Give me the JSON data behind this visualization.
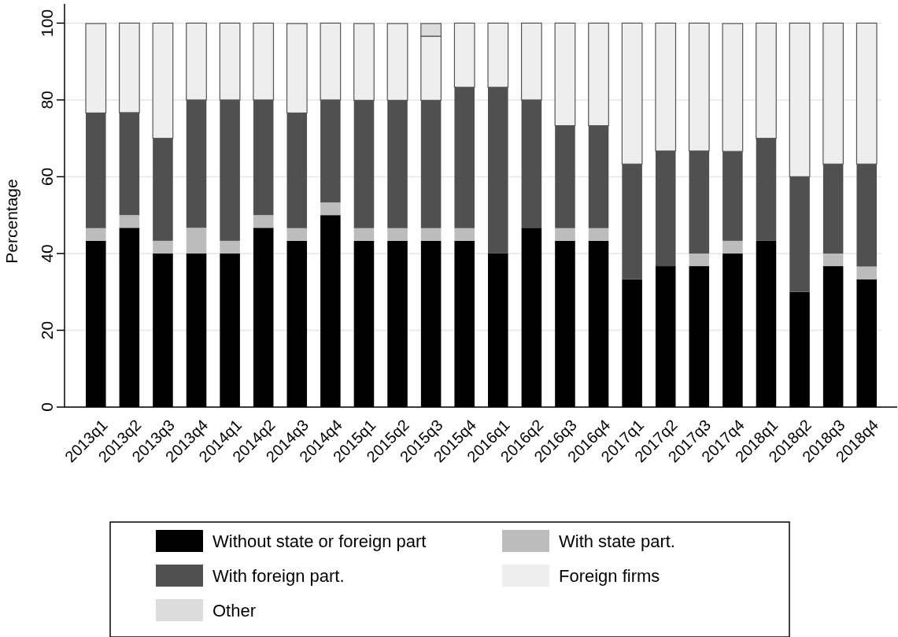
{
  "chart_data": {
    "type": "bar",
    "stacked": true,
    "ylabel": "Percentage",
    "categories": [
      "2013q1",
      "2013q2",
      "2013q3",
      "2013q4",
      "2014q1",
      "2014q2",
      "2014q3",
      "2014q4",
      "2015q1",
      "2015q2",
      "2015q3",
      "2015q4",
      "2016q1",
      "2016q2",
      "2016q3",
      "2016q4",
      "2017q1",
      "2017q2",
      "2017q3",
      "2017q4",
      "2018q1",
      "2018q2",
      "2018q3",
      "2018q4"
    ],
    "series": [
      {
        "name": "Without state or foreign part",
        "color": "#000000",
        "values": [
          43.3,
          46.7,
          40,
          40,
          40,
          46.7,
          43.3,
          50,
          43.3,
          43.3,
          43.3,
          43.3,
          40,
          46.7,
          43.3,
          43.3,
          33.3,
          36.7,
          36.7,
          40,
          43.3,
          30,
          36.7,
          33.3
        ]
      },
      {
        "name": "With state part.",
        "color": "#bcbcbc",
        "values": [
          3.3,
          3.3,
          3.3,
          6.7,
          3.3,
          3.3,
          3.3,
          3.3,
          3.3,
          3.3,
          3.3,
          3.3,
          0,
          0,
          3.3,
          3.3,
          0,
          0,
          3.3,
          3.3,
          0,
          0,
          3.3,
          3.3
        ]
      },
      {
        "name": "With foreign part.",
        "color": "#505050",
        "values": [
          30,
          26.7,
          26.7,
          33.3,
          36.7,
          30,
          30,
          26.7,
          33.3,
          33.3,
          33.3,
          36.7,
          43.3,
          33.3,
          26.7,
          26.7,
          30,
          30,
          26.7,
          23.3,
          26.7,
          30,
          23.3,
          26.7
        ]
      },
      {
        "name": "Foreign firms",
        "color": "#eeeeee",
        "values": [
          23.3,
          23.3,
          30,
          20,
          20,
          20,
          23.3,
          20,
          20,
          20,
          16.7,
          16.7,
          16.7,
          20,
          26.7,
          26.7,
          36.7,
          33.3,
          33.3,
          33.3,
          30,
          40,
          36.7,
          36.7
        ]
      },
      {
        "name": "Other",
        "color": "#dcdcdc",
        "values": [
          0,
          0,
          0,
          0,
          0,
          0,
          0,
          0,
          0,
          0,
          3.3,
          0,
          0,
          0,
          0,
          0,
          0,
          0,
          0,
          0,
          0,
          0,
          0,
          0
        ]
      }
    ],
    "ylim": [
      0,
      105
    ],
    "yticks": [
      0,
      20,
      40,
      60,
      80,
      100
    ],
    "grid": "y",
    "legend": "bottom"
  }
}
